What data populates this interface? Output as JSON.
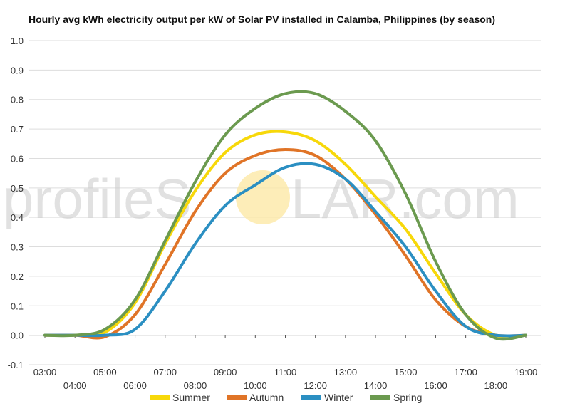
{
  "chart_data": {
    "type": "line",
    "title": "Hourly avg kWh electricity output per kW of Solar PV installed in Calamba, Philippines (by season)",
    "xlabel": "",
    "ylabel": "",
    "categories": [
      "03:00",
      "04:00",
      "05:00",
      "06:00",
      "07:00",
      "08:00",
      "09:00",
      "10:00",
      "11:00",
      "12:00",
      "13:00",
      "14:00",
      "15:00",
      "16:00",
      "17:00",
      "18:00",
      "19:00"
    ],
    "ylim": [
      -0.1,
      1.0
    ],
    "yticks": [
      "-0.1",
      "0.0",
      "0.1",
      "0.2",
      "0.3",
      "0.4",
      "0.5",
      "0.6",
      "0.7",
      "0.8",
      "0.9",
      "1.0"
    ],
    "grid": true,
    "legend": "bottom",
    "series": [
      {
        "name": "Summer",
        "color": "#f7d80a",
        "values": [
          0.0,
          0.0,
          0.01,
          0.11,
          0.31,
          0.49,
          0.62,
          0.68,
          0.69,
          0.66,
          0.58,
          0.47,
          0.36,
          0.21,
          0.07,
          0.0,
          0.0
        ]
      },
      {
        "name": "Autumn",
        "color": "#e07427",
        "values": [
          0.0,
          0.0,
          -0.005,
          0.07,
          0.24,
          0.42,
          0.55,
          0.61,
          0.63,
          0.61,
          0.53,
          0.41,
          0.27,
          0.12,
          0.03,
          0.0,
          0.0
        ]
      },
      {
        "name": "Winter",
        "color": "#2b8fc2",
        "values": [
          0.0,
          0.0,
          0.0,
          0.02,
          0.15,
          0.31,
          0.44,
          0.51,
          0.57,
          0.58,
          0.53,
          0.42,
          0.3,
          0.15,
          0.03,
          0.0,
          0.0
        ]
      },
      {
        "name": "Spring",
        "color": "#6b9a4f",
        "values": [
          0.0,
          0.0,
          0.02,
          0.12,
          0.32,
          0.52,
          0.68,
          0.77,
          0.82,
          0.82,
          0.76,
          0.66,
          0.48,
          0.25,
          0.07,
          -0.01,
          0.0
        ]
      }
    ]
  },
  "watermark": {
    "text_pre": "profileS",
    "text_post": "LAR.com",
    "sun_color": "#fce9a6"
  }
}
